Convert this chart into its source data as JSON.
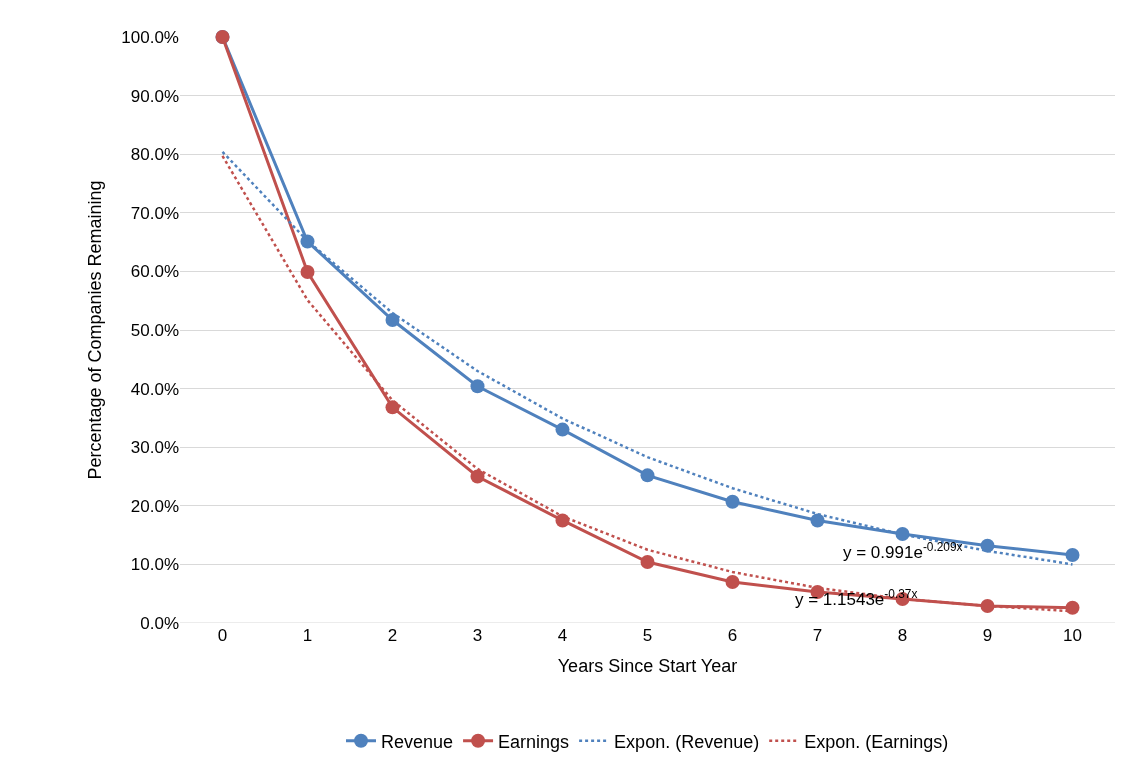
{
  "chart_data": {
    "type": "line",
    "xlabel": "Years Since Start Year",
    "ylabel": "Percentage of Companies Remaining",
    "categories": [
      "0",
      "1",
      "2",
      "3",
      "4",
      "5",
      "6",
      "7",
      "8",
      "9",
      "10"
    ],
    "series": [
      {
        "name": "Revenue",
        "color": "#4f81bd",
        "marker": "circle",
        "line_style": "solid",
        "values": [
          100,
          65.1,
          51.7,
          40.4,
          33.0,
          25.2,
          20.7,
          17.5,
          15.2,
          13.2,
          11.6
        ]
      },
      {
        "name": "Earnings",
        "color": "#c0504d",
        "marker": "circle",
        "line_style": "solid",
        "values": [
          100,
          59.9,
          36.8,
          25.0,
          17.5,
          10.4,
          7.0,
          5.3,
          4.1,
          2.9,
          2.6
        ]
      },
      {
        "name": "Expon. (Revenue)",
        "color": "#4f81bd",
        "marker": "none",
        "line_style": "dotted",
        "values": [
          80.4,
          65.2,
          52.9,
          43.0,
          34.9,
          28.3,
          23.0,
          18.6,
          15.1,
          12.3,
          10.0
        ]
      },
      {
        "name": "Expon. (Earnings)",
        "color": "#c0504d",
        "marker": "none",
        "line_style": "dotted",
        "values": [
          79.7,
          55.1,
          38.0,
          26.3,
          18.2,
          12.5,
          8.7,
          6.0,
          4.1,
          2.9,
          2.0
        ]
      }
    ],
    "ylim": [
      0,
      100
    ],
    "yticks": [
      {
        "value": 0,
        "label": "0.0%"
      },
      {
        "value": 10,
        "label": "10.0%"
      },
      {
        "value": 20,
        "label": "20.0%"
      },
      {
        "value": 30,
        "label": "30.0%"
      },
      {
        "value": 40,
        "label": "40.0%"
      },
      {
        "value": 50,
        "label": "50.0%"
      },
      {
        "value": 60,
        "label": "60.0%"
      },
      {
        "value": 70,
        "label": "70.0%"
      },
      {
        "value": 80,
        "label": "80.0%"
      },
      {
        "value": 90,
        "label": "90.0%"
      },
      {
        "value": 100,
        "label": "100.0%"
      }
    ],
    "grid": "y",
    "legend": "bottom",
    "annotations": [
      "y = 0.991e$^{-0.209x}$",
      "y = 1.1543e$^{-0.37x}$"
    ]
  }
}
